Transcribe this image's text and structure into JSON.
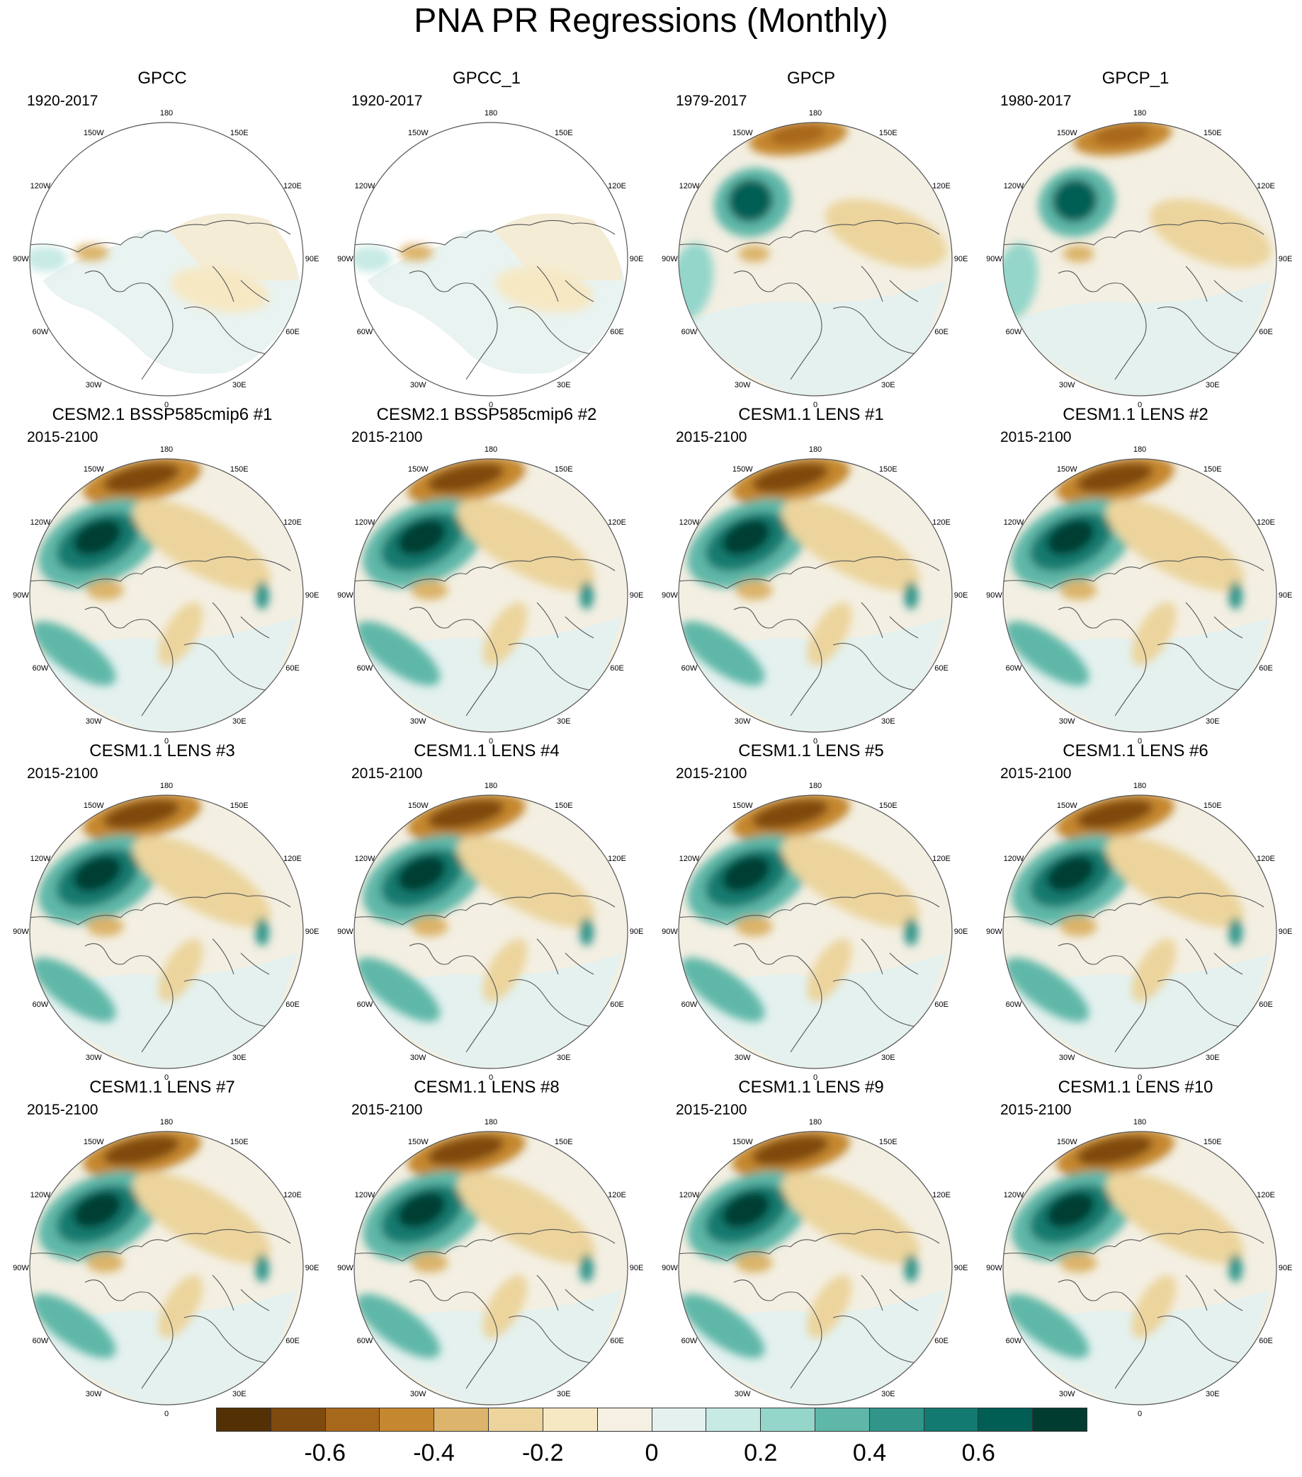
{
  "figure": {
    "title": "PNA PR Regressions (Monthly)"
  },
  "panels": [
    {
      "title": "GPCC",
      "period": "1920-2017",
      "variant": "gpcc"
    },
    {
      "title": "GPCC_1",
      "period": "1920-2017",
      "variant": "gpcc"
    },
    {
      "title": "GPCP",
      "period": "1979-2017",
      "variant": "obs"
    },
    {
      "title": "GPCP_1",
      "period": "1980-2017",
      "variant": "obs"
    },
    {
      "title": "CESM2.1 BSSP585cmip6 #1",
      "period": "2015-2100",
      "variant": "model"
    },
    {
      "title": "CESM2.1 BSSP585cmip6 #2",
      "period": "2015-2100",
      "variant": "model"
    },
    {
      "title": "CESM1.1 LENS #1",
      "period": "2015-2100",
      "variant": "model"
    },
    {
      "title": "CESM1.1 LENS #2",
      "period": "2015-2100",
      "variant": "model"
    },
    {
      "title": "CESM1.1 LENS #3",
      "period": "2015-2100",
      "variant": "model"
    },
    {
      "title": "CESM1.1 LENS #4",
      "period": "2015-2100",
      "variant": "model"
    },
    {
      "title": "CESM1.1 LENS #5",
      "period": "2015-2100",
      "variant": "model"
    },
    {
      "title": "CESM1.1 LENS #6",
      "period": "2015-2100",
      "variant": "model"
    },
    {
      "title": "CESM1.1 LENS #7",
      "period": "2015-2100",
      "variant": "model"
    },
    {
      "title": "CESM1.1 LENS #8",
      "period": "2015-2100",
      "variant": "model"
    },
    {
      "title": "CESM1.1 LENS #9",
      "period": "2015-2100",
      "variant": "model"
    },
    {
      "title": "CESM1.1 LENS #10",
      "period": "2015-2100",
      "variant": "model"
    }
  ],
  "longitude_labels": [
    {
      "text": "180",
      "lon": 180
    },
    {
      "text": "150E",
      "lon": 150
    },
    {
      "text": "120E",
      "lon": 120
    },
    {
      "text": "90E",
      "lon": 90
    },
    {
      "text": "60E",
      "lon": 60
    },
    {
      "text": "30E",
      "lon": 30
    },
    {
      "text": "0",
      "lon": 0
    },
    {
      "text": "30W",
      "lon": -30
    },
    {
      "text": "60W",
      "lon": -60
    },
    {
      "text": "90W",
      "lon": -90
    },
    {
      "text": "120W",
      "lon": -120
    },
    {
      "text": "150W",
      "lon": -150
    }
  ],
  "colorbar": {
    "colors": [
      "#543005",
      "#7f4a0d",
      "#a8681c",
      "#c5872f",
      "#dcb46b",
      "#ecd49c",
      "#f6e8c3",
      "#f5f0e3",
      "#e4f1ef",
      "#c7eae4",
      "#94d6ca",
      "#5fb7a8",
      "#31958a",
      "#127a70",
      "#015e55",
      "#003c30"
    ],
    "ticks": [
      {
        "label": "-0.6",
        "index": 2
      },
      {
        "label": "-0.4",
        "index": 4
      },
      {
        "label": "-0.2",
        "index": 6
      },
      {
        "label": "0",
        "index": 8
      },
      {
        "label": "0.2",
        "index": 10
      },
      {
        "label": "0.4",
        "index": 12
      },
      {
        "label": "0.6",
        "index": 14
      }
    ]
  }
}
